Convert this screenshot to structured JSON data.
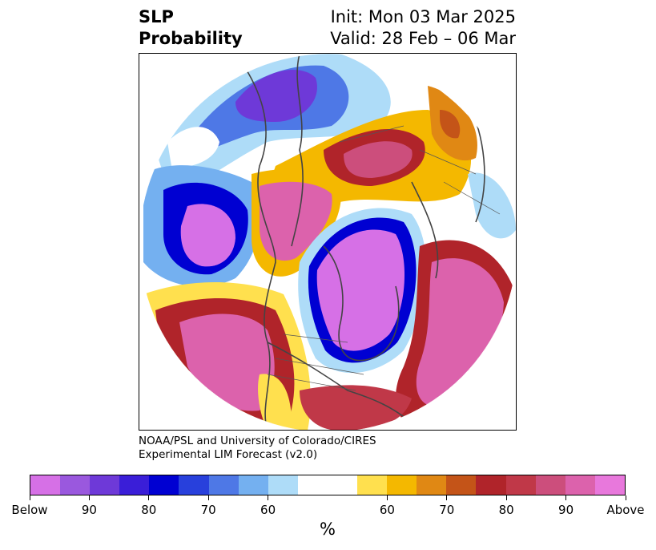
{
  "title": {
    "left_line1": "SLP",
    "left_line2": "Probability",
    "right_line1": "Init: Mon 03 Mar 2025",
    "right_line2": "Valid: 28 Feb – 06 Mar"
  },
  "credit": {
    "line1": "NOAA/PSL and University of Colorado/CIRES",
    "line2": "Experimental LIM Forecast (v2.0)"
  },
  "colorbar": {
    "colors": [
      "#d670e6",
      "#9a58de",
      "#6e39d8",
      "#3a1ed8",
      "#0000d2",
      "#2840dc",
      "#4e78e6",
      "#74b0f0",
      "#aedcf8",
      "#ffffff",
      "#ffffff",
      "#ffe04e",
      "#f4b800",
      "#e08814",
      "#c45418",
      "#b0242a",
      "#c03848",
      "#cc4e7c",
      "#dc62ac",
      "#e878dc"
    ],
    "tick_labels": [
      "Below",
      "90",
      "80",
      "70",
      "60",
      "60",
      "70",
      "80",
      "90",
      "Above"
    ],
    "unit": "%"
  },
  "map": {
    "projection": "north polar stereographic",
    "variable": "SLP probability",
    "palette": {
      "below_strong": "#d670e6",
      "below_mid": "#6e39d8",
      "below_deep": "#0000d2",
      "below_light": "#74b0f0",
      "below_weak": "#aedcf8",
      "neutral": "#ffffff",
      "above_weak": "#ffe04e",
      "above_light": "#f4b800",
      "above_mid": "#e08814",
      "above_deep": "#b0242a",
      "above_red": "#c03848",
      "above_pink": "#dc62ac",
      "above_strong": "#e878dc",
      "coastline": "#444444"
    }
  }
}
